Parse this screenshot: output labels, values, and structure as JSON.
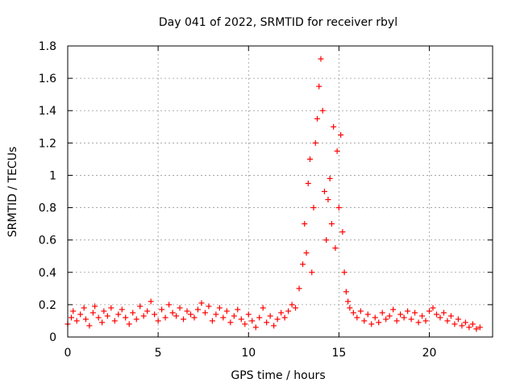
{
  "chart_data": {
    "type": "scatter",
    "title": "Day 041 of 2022, SRMTID for receiver rbyl",
    "xlabel": "GPS time / hours",
    "ylabel": "SRMTID / TECUs",
    "xlim": [
      0,
      23.5
    ],
    "ylim": [
      0,
      1.8
    ],
    "xticks": [
      0,
      5,
      10,
      15,
      20
    ],
    "xtick_labels": [
      "0",
      "5",
      "10",
      "15",
      "20"
    ],
    "yticks": [
      0,
      0.2,
      0.4,
      0.6,
      0.8,
      1,
      1.2,
      1.4,
      1.6,
      1.8
    ],
    "ytick_labels": [
      "0",
      "0.2",
      "0.4",
      "0.6",
      "0.8",
      "1",
      "1.2",
      "1.4",
      "1.6",
      "1.8"
    ],
    "grid": true,
    "marker": "+",
    "series": [
      {
        "name": "SRMTID",
        "color": "#ff0000",
        "points": [
          [
            0.0,
            0.08
          ],
          [
            0.2,
            0.12
          ],
          [
            0.3,
            0.16
          ],
          [
            0.5,
            0.1
          ],
          [
            0.7,
            0.14
          ],
          [
            0.9,
            0.18
          ],
          [
            1.0,
            0.11
          ],
          [
            1.2,
            0.07
          ],
          [
            1.4,
            0.15
          ],
          [
            1.5,
            0.19
          ],
          [
            1.7,
            0.12
          ],
          [
            1.9,
            0.09
          ],
          [
            2.0,
            0.16
          ],
          [
            2.2,
            0.13
          ],
          [
            2.4,
            0.18
          ],
          [
            2.6,
            0.1
          ],
          [
            2.8,
            0.14
          ],
          [
            3.0,
            0.17
          ],
          [
            3.2,
            0.12
          ],
          [
            3.4,
            0.08
          ],
          [
            3.6,
            0.15
          ],
          [
            3.8,
            0.11
          ],
          [
            4.0,
            0.19
          ],
          [
            4.2,
            0.13
          ],
          [
            4.4,
            0.16
          ],
          [
            4.6,
            0.22
          ],
          [
            4.8,
            0.14
          ],
          [
            5.0,
            0.1
          ],
          [
            5.2,
            0.17
          ],
          [
            5.4,
            0.12
          ],
          [
            5.6,
            0.2
          ],
          [
            5.8,
            0.15
          ],
          [
            6.0,
            0.13
          ],
          [
            6.2,
            0.18
          ],
          [
            6.4,
            0.11
          ],
          [
            6.6,
            0.16
          ],
          [
            6.8,
            0.14
          ],
          [
            7.0,
            0.12
          ],
          [
            7.2,
            0.17
          ],
          [
            7.4,
            0.21
          ],
          [
            7.6,
            0.15
          ],
          [
            7.8,
            0.19
          ],
          [
            8.0,
            0.1
          ],
          [
            8.2,
            0.14
          ],
          [
            8.4,
            0.18
          ],
          [
            8.6,
            0.12
          ],
          [
            8.8,
            0.16
          ],
          [
            9.0,
            0.09
          ],
          [
            9.2,
            0.13
          ],
          [
            9.4,
            0.17
          ],
          [
            9.6,
            0.11
          ],
          [
            9.8,
            0.08
          ],
          [
            10.0,
            0.14
          ],
          [
            10.2,
            0.1
          ],
          [
            10.4,
            0.06
          ],
          [
            10.6,
            0.12
          ],
          [
            10.8,
            0.18
          ],
          [
            11.0,
            0.09
          ],
          [
            11.2,
            0.13
          ],
          [
            11.4,
            0.07
          ],
          [
            11.6,
            0.11
          ],
          [
            11.8,
            0.15
          ],
          [
            12.0,
            0.12
          ],
          [
            12.2,
            0.16
          ],
          [
            12.4,
            0.2
          ],
          [
            12.6,
            0.18
          ],
          [
            12.8,
            0.3
          ],
          [
            13.0,
            0.45
          ],
          [
            13.1,
            0.7
          ],
          [
            13.2,
            0.52
          ],
          [
            13.3,
            0.95
          ],
          [
            13.4,
            1.1
          ],
          [
            13.5,
            0.4
          ],
          [
            13.6,
            0.8
          ],
          [
            13.7,
            1.2
          ],
          [
            13.8,
            1.35
          ],
          [
            13.9,
            1.55
          ],
          [
            14.0,
            1.72
          ],
          [
            14.1,
            1.4
          ],
          [
            14.2,
            0.9
          ],
          [
            14.3,
            0.6
          ],
          [
            14.4,
            0.85
          ],
          [
            14.5,
            0.98
          ],
          [
            14.6,
            0.7
          ],
          [
            14.7,
            1.3
          ],
          [
            14.8,
            0.55
          ],
          [
            14.9,
            1.15
          ],
          [
            15.0,
            0.8
          ],
          [
            15.1,
            1.25
          ],
          [
            15.2,
            0.65
          ],
          [
            15.3,
            0.4
          ],
          [
            15.4,
            0.28
          ],
          [
            15.5,
            0.22
          ],
          [
            15.6,
            0.18
          ],
          [
            15.8,
            0.15
          ],
          [
            16.0,
            0.12
          ],
          [
            16.2,
            0.16
          ],
          [
            16.4,
            0.1
          ],
          [
            16.6,
            0.14
          ],
          [
            16.8,
            0.08
          ],
          [
            17.0,
            0.12
          ],
          [
            17.2,
            0.09
          ],
          [
            17.4,
            0.15
          ],
          [
            17.6,
            0.11
          ],
          [
            17.8,
            0.13
          ],
          [
            18.0,
            0.17
          ],
          [
            18.2,
            0.1
          ],
          [
            18.4,
            0.14
          ],
          [
            18.6,
            0.12
          ],
          [
            18.8,
            0.16
          ],
          [
            19.0,
            0.11
          ],
          [
            19.2,
            0.15
          ],
          [
            19.4,
            0.09
          ],
          [
            19.6,
            0.13
          ],
          [
            19.8,
            0.1
          ],
          [
            20.0,
            0.16
          ],
          [
            20.2,
            0.18
          ],
          [
            20.4,
            0.14
          ],
          [
            20.6,
            0.12
          ],
          [
            20.8,
            0.15
          ],
          [
            21.0,
            0.1
          ],
          [
            21.2,
            0.13
          ],
          [
            21.4,
            0.08
          ],
          [
            21.6,
            0.11
          ],
          [
            21.8,
            0.07
          ],
          [
            22.0,
            0.09
          ],
          [
            22.2,
            0.06
          ],
          [
            22.4,
            0.08
          ],
          [
            22.6,
            0.05
          ],
          [
            22.8,
            0.06
          ]
        ]
      }
    ]
  }
}
